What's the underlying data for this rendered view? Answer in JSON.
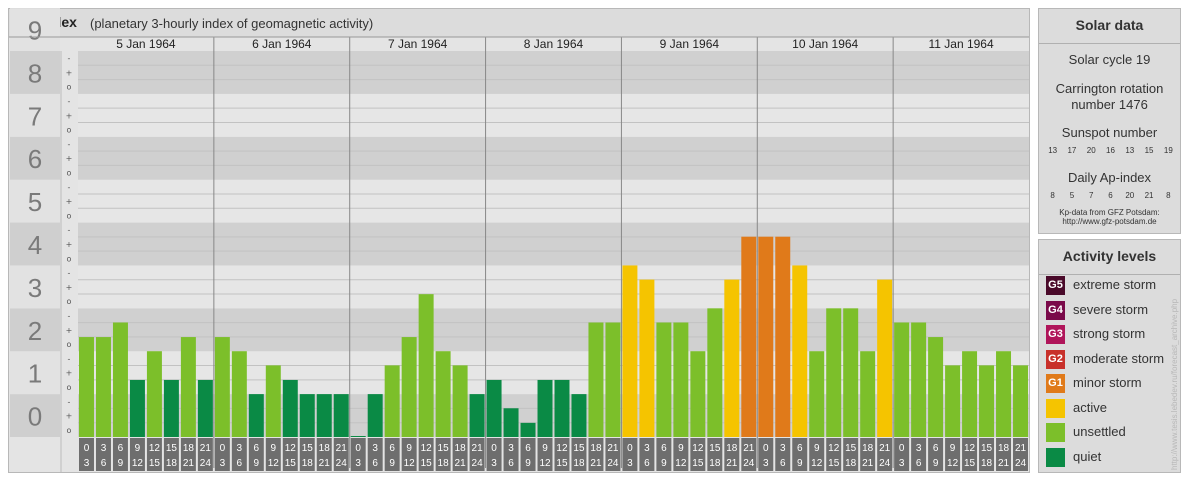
{
  "header": {
    "title": "Kp-index",
    "subtitle": "(planetary 3-hourly index of geomagnetic activity)"
  },
  "solar": {
    "title": "Solar data",
    "cycle": "Solar cycle 19",
    "carrington_line1": "Carrington rotation",
    "carrington_line2": "number 1476",
    "sunspot_title": "Sunspot number",
    "sunspot_values": [
      "13",
      "17",
      "20",
      "16",
      "13",
      "15",
      "19"
    ],
    "ap_title": "Daily Ap-index",
    "ap_values": [
      "8",
      "5",
      "7",
      "6",
      "20",
      "21",
      "8"
    ],
    "source_line1": "Kp-data from GFZ Potsdam:",
    "source_line2": "http://www.gfz-potsdam.de"
  },
  "activity": {
    "title": "Activity levels",
    "levels": [
      {
        "code": "G5",
        "label": "extreme storm",
        "color": "#4a0a2a"
      },
      {
        "code": "G4",
        "label": "severe storm",
        "color": "#7a0a4a"
      },
      {
        "code": "G3",
        "label": "strong storm",
        "color": "#b0155a"
      },
      {
        "code": "G2",
        "label": "moderate storm",
        "color": "#c8302a"
      },
      {
        "code": "G1",
        "label": "minor storm",
        "color": "#e07a1a"
      },
      {
        "code": "",
        "label": "active",
        "color": "#f5c400"
      },
      {
        "code": "",
        "label": "unsettled",
        "color": "#7cbf2a"
      },
      {
        "code": "",
        "label": "quiet",
        "color": "#0a8a45"
      }
    ]
  },
  "credit": "http://www.tesis.lebedev.ru/forecast_archive.php",
  "chart_data": {
    "type": "bar",
    "title": "Kp-index",
    "subtitle": "(planetary 3-hourly index of geomagnetic activity)",
    "ylim": [
      0,
      9
    ],
    "y_ticks": [
      "0",
      "1",
      "2",
      "3",
      "4",
      "5",
      "6",
      "7",
      "8",
      "9"
    ],
    "minor_ticks": [
      "o",
      "+",
      "-"
    ],
    "days": [
      "5 Jan 1964",
      "6 Jan 1964",
      "7 Jan 1964",
      "8 Jan 1964",
      "9 Jan 1964",
      "10 Jan 1964",
      "11 Jan 1964"
    ],
    "interval_start": [
      "0",
      "3",
      "6",
      "9",
      "12",
      "15",
      "18",
      "21"
    ],
    "interval_end": [
      "3",
      "6",
      "9",
      "12",
      "15",
      "18",
      "21",
      "24"
    ],
    "values": [
      2.33,
      2.33,
      2.67,
      1.33,
      2.0,
      1.33,
      2.33,
      1.33,
      2.33,
      2.0,
      1.0,
      1.67,
      1.33,
      1.0,
      1.0,
      1.0,
      0.0,
      1.0,
      1.67,
      2.33,
      3.33,
      2.0,
      1.67,
      1.0,
      1.33,
      0.67,
      0.33,
      1.33,
      1.33,
      1.0,
      2.67,
      2.67,
      4.0,
      3.67,
      2.67,
      2.67,
      2.0,
      3.0,
      3.67,
      4.67,
      4.67,
      4.67,
      4.0,
      2.0,
      3.0,
      3.0,
      2.0,
      3.67,
      2.67,
      2.67,
      2.33,
      1.67,
      2.0,
      1.67,
      2.0,
      1.67
    ],
    "colors": {
      "quiet": "#0a8a45",
      "unsettled": "#7cbf2a",
      "active": "#f5c400",
      "minor_storm": "#e07a1a"
    }
  }
}
